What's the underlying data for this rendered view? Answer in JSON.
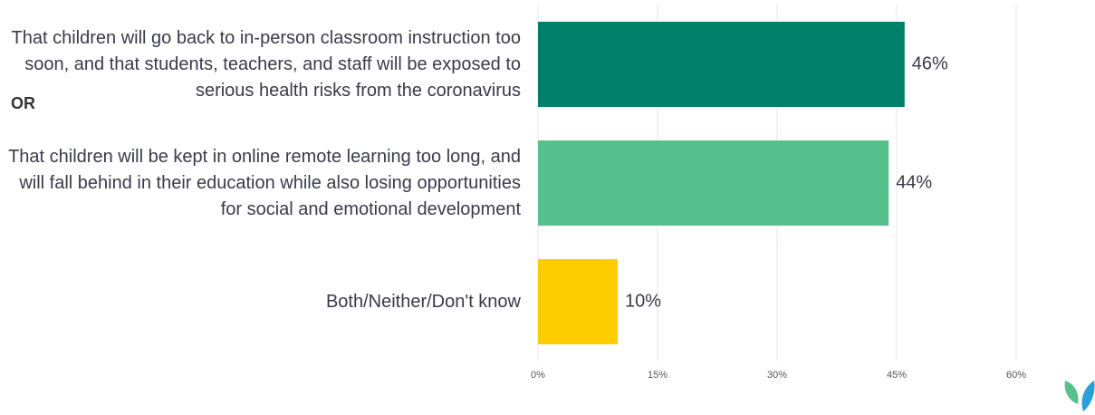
{
  "chart_data": {
    "type": "bar",
    "orientation": "horizontal",
    "annotation": "OR",
    "categories": [
      "That children will go back to in-person classroom instruction too soon, and that students, teachers, and staff will be exposed to serious health risks from the coronavirus",
      "That children will be kept in online remote learning too long, and will fall behind in their education while also losing opportunities for social and emotional development",
      "Both/Neither/Don't know"
    ],
    "values": [
      46,
      44,
      10
    ],
    "value_labels": [
      "46%",
      "44%",
      "10%"
    ],
    "colors": [
      "#007f6a",
      "#57c08c",
      "#ffcc00"
    ],
    "xlim": [
      0,
      68
    ],
    "xticks": [
      {
        "value": 0,
        "label": "0%"
      },
      {
        "value": 15,
        "label": "15%"
      },
      {
        "value": 30,
        "label": "30%"
      },
      {
        "value": 45,
        "label": "45%"
      },
      {
        "value": 60,
        "label": "60%"
      }
    ],
    "grid": true
  }
}
